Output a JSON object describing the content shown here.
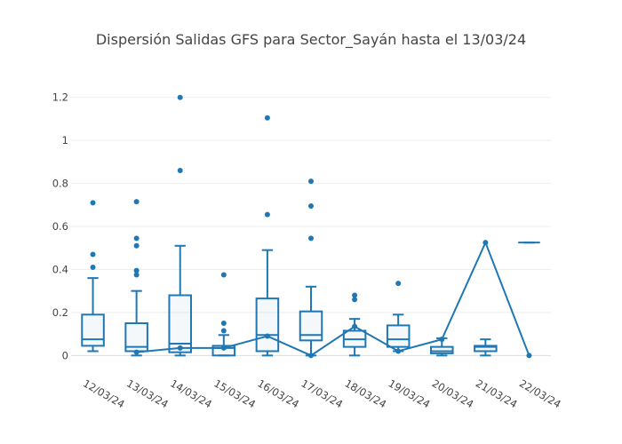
{
  "chart_data": {
    "type": "box",
    "title": "Dispersión Salidas GFS para Sector_Sayán hasta el 13/03/24",
    "xlabel": "",
    "ylabel": "",
    "ylim": [
      -0.04,
      1.24
    ],
    "yticks": [
      0,
      0.2,
      0.4,
      0.6,
      0.8,
      1,
      1.2
    ],
    "ytick_labels": [
      "0",
      "0.2",
      "0.4",
      "0.6",
      "0.8",
      "1",
      "1.2"
    ],
    "grid": true,
    "color": "#1f77b4",
    "categories": [
      "12/03/24",
      "13/03/24",
      "14/03/24",
      "15/03/24",
      "16/03/24",
      "17/03/24",
      "18/03/24",
      "19/03/24",
      "20/03/24",
      "21/03/24",
      "22/03/24"
    ],
    "boxes": [
      {
        "low": 0.02,
        "q1": 0.045,
        "median": 0.075,
        "q3": 0.19,
        "high": 0.36,
        "outliers": [
          0.41,
          0.47,
          0.71
        ]
      },
      {
        "low": 0.0,
        "q1": 0.02,
        "median": 0.04,
        "q3": 0.15,
        "high": 0.3,
        "outliers": [
          0.375,
          0.395,
          0.51,
          0.545,
          0.715
        ]
      },
      {
        "low": 0.0,
        "q1": 0.015,
        "median": 0.055,
        "q3": 0.28,
        "high": 0.51,
        "outliers": [
          0.86,
          1.2
        ]
      },
      {
        "low": 0.0,
        "q1": 0.0,
        "median": 0.035,
        "q3": 0.045,
        "high": 0.095,
        "outliers": [
          0.115,
          0.15,
          0.375
        ]
      },
      {
        "low": 0.0,
        "q1": 0.02,
        "median": 0.095,
        "q3": 0.265,
        "high": 0.49,
        "outliers": [
          0.655,
          1.105
        ]
      },
      {
        "low": 0.0,
        "q1": 0.07,
        "median": 0.095,
        "q3": 0.205,
        "high": 0.32,
        "outliers": [
          0.545,
          0.695,
          0.81
        ]
      },
      {
        "low": 0.0,
        "q1": 0.04,
        "median": 0.075,
        "q3": 0.115,
        "high": 0.17,
        "outliers": [
          0.26,
          0.28
        ]
      },
      {
        "low": 0.02,
        "q1": 0.04,
        "median": 0.075,
        "q3": 0.14,
        "high": 0.19,
        "outliers": [
          0.335
        ]
      },
      {
        "low": 0.0,
        "q1": 0.01,
        "median": 0.02,
        "q3": 0.04,
        "high": 0.08,
        "outliers": []
      },
      {
        "low": 0.0,
        "q1": 0.02,
        "median": 0.04,
        "q3": 0.045,
        "high": 0.075,
        "outliers": []
      },
      {
        "low": 0.525,
        "q1": 0.525,
        "median": 0.525,
        "q3": 0.525,
        "high": 0.525,
        "outliers": []
      }
    ],
    "line": {
      "values": [
        null,
        0.015,
        0.035,
        0.035,
        0.09,
        0.0,
        0.135,
        0.02,
        0.075,
        0.525,
        0.0
      ]
    }
  }
}
